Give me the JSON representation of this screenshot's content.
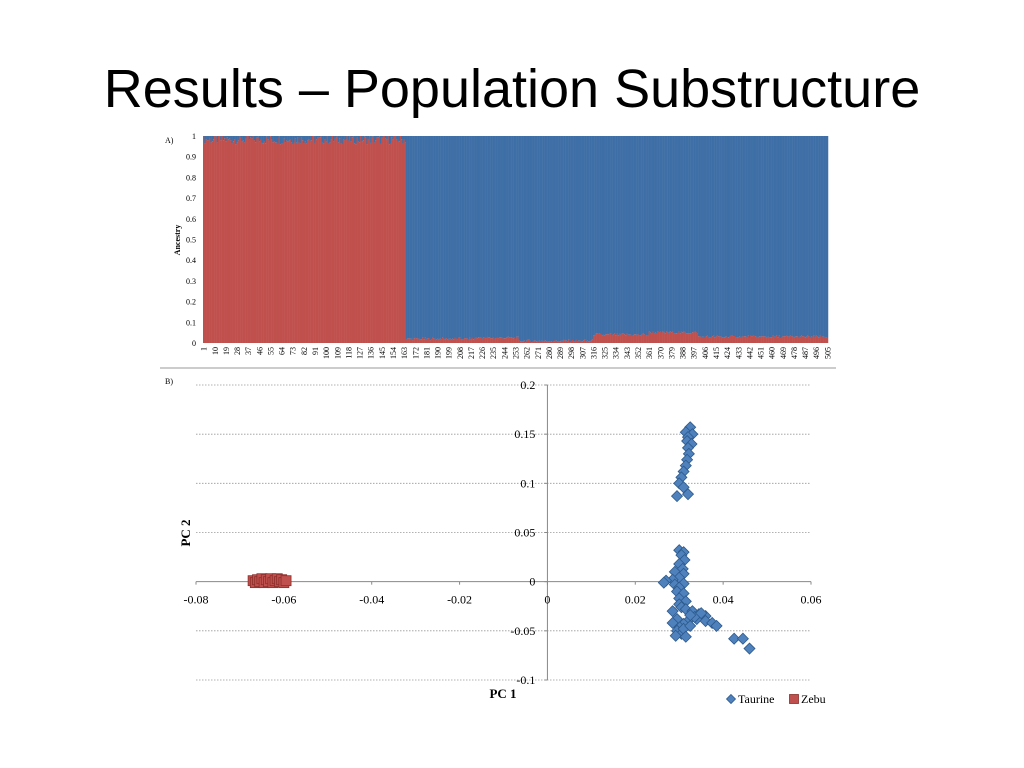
{
  "slide": {
    "title": "Results – Population Substructure"
  },
  "chart_data": [
    {
      "panel_label": "A)",
      "type": "bar",
      "stacked": true,
      "ylabel": "Ancestry",
      "ylim": [
        0,
        1
      ],
      "yticks": [
        "0",
        "0.1",
        "0.2",
        "0.3",
        "0.4",
        "0.5",
        "0.6",
        "0.7",
        "0.8",
        "0.9",
        "1"
      ],
      "x_start": 1,
      "x_end": 505,
      "xticks": [
        "1",
        "10",
        "19",
        "28",
        "37",
        "46",
        "55",
        "64",
        "73",
        "82",
        "91",
        "100",
        "109",
        "118",
        "127",
        "136",
        "145",
        "154",
        "163",
        "172",
        "181",
        "190",
        "199",
        "208",
        "217",
        "226",
        "235",
        "244",
        "253",
        "262",
        "271",
        "280",
        "289",
        "298",
        "307",
        "316",
        "325",
        "334",
        "343",
        "352",
        "361",
        "370",
        "379",
        "388",
        "397",
        "406",
        "415",
        "424",
        "433",
        "442",
        "451",
        "460",
        "469",
        "478",
        "487",
        "496",
        "505"
      ],
      "zebu_individuals": 164,
      "taurine_individuals": 341,
      "series": [
        {
          "name": "Zebu",
          "color": "#c0504d",
          "profile": [
            {
              "from": 1,
              "to": 164,
              "value": 0.99
            },
            {
              "from": 165,
              "to": 220,
              "value": 0.02
            },
            {
              "from": 221,
              "to": 255,
              "value": 0.025
            },
            {
              "from": 256,
              "to": 315,
              "value": 0.01
            },
            {
              "from": 316,
              "to": 360,
              "value": 0.04
            },
            {
              "from": 361,
              "to": 400,
              "value": 0.05
            },
            {
              "from": 401,
              "to": 505,
              "value": 0.03
            }
          ]
        },
        {
          "name": "Taurine",
          "color": "#3f6fa6",
          "note_values": "1 minus Zebu"
        }
      ]
    },
    {
      "panel_label": "B)",
      "type": "scatter",
      "xlabel": "PC 1",
      "ylabel": "PC 2",
      "xlim": [
        -0.08,
        0.06
      ],
      "ylim": [
        -0.1,
        0.2
      ],
      "xticks": [
        "-0.08",
        "-0.06",
        "-0.04",
        "-0.02",
        "0",
        "0.02",
        "0.04",
        "0.06"
      ],
      "yticks": [
        "-0.1",
        "-0.05",
        "0",
        "0.05",
        "0.1",
        "0.15",
        "0.2"
      ],
      "legend_position": "bottom-right",
      "series": [
        {
          "name": "Taurine",
          "color": "#4f81bd",
          "marker": "diamond",
          "points": [
            [
              0.0325,
              0.157
            ],
            [
              0.0315,
              0.152
            ],
            [
              0.033,
              0.15
            ],
            [
              0.032,
              0.147
            ],
            [
              0.0318,
              0.143
            ],
            [
              0.0328,
              0.14
            ],
            [
              0.032,
              0.136
            ],
            [
              0.0322,
              0.13
            ],
            [
              0.0318,
              0.124
            ],
            [
              0.0315,
              0.118
            ],
            [
              0.031,
              0.112
            ],
            [
              0.0305,
              0.106
            ],
            [
              0.03,
              0.1
            ],
            [
              0.031,
              0.096
            ],
            [
              0.0295,
              0.087
            ],
            [
              0.032,
              0.089
            ],
            [
              0.03,
              0.032
            ],
            [
              0.031,
              0.03
            ],
            [
              0.0305,
              0.027
            ],
            [
              0.0312,
              0.022
            ],
            [
              0.03,
              0.018
            ],
            [
              0.0308,
              0.013
            ],
            [
              0.029,
              0.01
            ],
            [
              0.031,
              0.008
            ],
            [
              0.03,
              0.004
            ],
            [
              0.0285,
              0.002
            ],
            [
              0.027,
              0.001
            ],
            [
              0.0265,
              -0.001
            ],
            [
              0.029,
              -0.003
            ],
            [
              0.031,
              -0.002
            ],
            [
              0.03,
              -0.006
            ],
            [
              0.0295,
              -0.01
            ],
            [
              0.031,
              -0.012
            ],
            [
              0.03,
              -0.017
            ],
            [
              0.0315,
              -0.02
            ],
            [
              0.03,
              -0.023
            ],
            [
              0.0305,
              -0.026
            ],
            [
              0.0315,
              -0.028
            ],
            [
              0.033,
              -0.03
            ],
            [
              0.0345,
              -0.033
            ],
            [
              0.036,
              -0.035
            ],
            [
              0.034,
              -0.038
            ],
            [
              0.032,
              -0.04
            ],
            [
              0.031,
              -0.043
            ],
            [
              0.03,
              -0.046
            ],
            [
              0.0295,
              -0.05
            ],
            [
              0.0305,
              -0.053
            ],
            [
              0.031,
              -0.048
            ],
            [
              0.0325,
              -0.045
            ],
            [
              0.036,
              -0.04
            ],
            [
              0.0375,
              -0.042
            ],
            [
              0.0385,
              -0.045
            ],
            [
              0.0335,
              -0.036
            ],
            [
              0.035,
              -0.032
            ],
            [
              0.0325,
              -0.034
            ],
            [
              0.0295,
              -0.038
            ],
            [
              0.0285,
              -0.03
            ],
            [
              0.0285,
              -0.042
            ],
            [
              0.0292,
              -0.055
            ],
            [
              0.0315,
              -0.056
            ],
            [
              0.0425,
              -0.058
            ],
            [
              0.0445,
              -0.058
            ],
            [
              0.046,
              -0.068
            ]
          ]
        },
        {
          "name": "Zebu",
          "color": "#c0504d",
          "marker": "square",
          "points": [
            [
              -0.067,
              0.001
            ],
            [
              -0.0665,
              -0.001
            ],
            [
              -0.066,
              0.002
            ],
            [
              -0.0655,
              0.0
            ],
            [
              -0.065,
              0.003
            ],
            [
              -0.0645,
              -0.001
            ],
            [
              -0.064,
              0.002
            ],
            [
              -0.0635,
              0.0
            ],
            [
              -0.063,
              0.003
            ],
            [
              -0.0625,
              -0.001
            ],
            [
              -0.062,
              0.001
            ],
            [
              -0.0615,
              0.003
            ],
            [
              -0.061,
              0.0
            ],
            [
              -0.0605,
              0.002
            ],
            [
              -0.06,
              -0.001
            ],
            [
              -0.0595,
              0.001
            ]
          ]
        }
      ]
    }
  ]
}
